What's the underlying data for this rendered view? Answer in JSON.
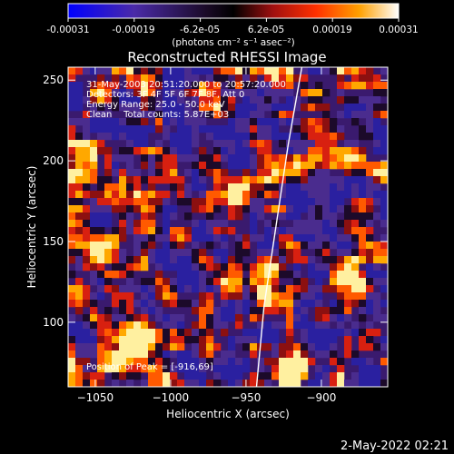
{
  "colorbar": {
    "tick_labels": [
      "-0.00031",
      "-0.00019",
      "-6.2e-05",
      "6.2e-05",
      "0.00019",
      "0.00031"
    ],
    "unit_label": "(photons cm⁻² s⁻¹ asec⁻²)"
  },
  "chart_data": {
    "type": "heatmap",
    "title": "Reconstructed RHESSI Image",
    "xlabel": "Heliocentric X (arcsec)",
    "ylabel": "Heliocentric Y (arcsec)",
    "xlim": [
      -1068,
      -856
    ],
    "ylim": [
      60,
      258
    ],
    "x_ticks": [
      -1050,
      -1000,
      -950,
      -900
    ],
    "y_ticks": [
      100,
      150,
      200,
      250
    ],
    "x_tick_labels": [
      "−1050",
      "−1000",
      "−950",
      "−900"
    ],
    "y_tick_labels": [
      "100",
      "150",
      "200",
      "250"
    ],
    "colormap": "blue-purple-red-yellow-white",
    "limb_line": [
      [
        -943,
        60
      ],
      [
        -938,
        110
      ],
      [
        -930,
        160
      ],
      [
        -922,
        210
      ],
      [
        -913,
        258
      ]
    ],
    "peak": {
      "x": -916,
      "y": 69
    },
    "annotations": [
      "31-May-2003 20:51:20.000 to 20:57:20.000",
      "Detectors: 3F 4F 5F 6F 7F 8F, Att 0",
      "Energy Range: 25.0 - 50.0 keV",
      "Clean    Total counts: 5.87E+03",
      "Position of Peak = [-916,69]"
    ]
  },
  "footer": {
    "date": "2-May-2022 02:21"
  }
}
